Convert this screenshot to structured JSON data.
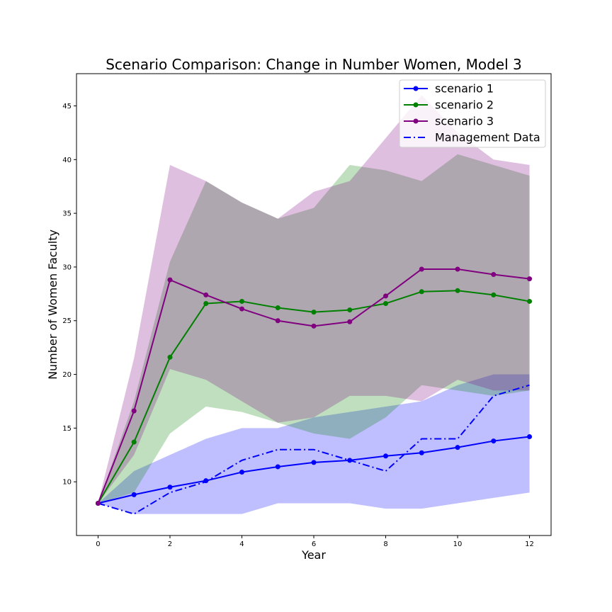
{
  "chart_data": {
    "type": "line",
    "title": "Scenario Comparison: Change in Number Women, Model 3",
    "xlabel": "Year",
    "ylabel": "Number of Women Faculty",
    "xlim": [
      -0.6,
      12.6
    ],
    "ylim": [
      5.0,
      48.0
    ],
    "xticks": [
      0,
      2,
      4,
      6,
      8,
      10,
      12
    ],
    "yticks": [
      10,
      15,
      20,
      25,
      30,
      35,
      40,
      45
    ],
    "x": [
      0,
      1,
      2,
      3,
      4,
      5,
      6,
      7,
      8,
      9,
      10,
      11,
      12
    ],
    "grid": false,
    "legend_position": "upper-right",
    "series": [
      {
        "name": "scenario 1",
        "color": "#0000ff",
        "style": "solid-marker",
        "values": [
          8.0,
          8.8,
          9.5,
          10.1,
          10.9,
          11.4,
          11.8,
          12.0,
          12.4,
          12.7,
          13.2,
          13.8,
          14.2
        ]
      },
      {
        "name": "scenario 2",
        "color": "#008000",
        "style": "solid-marker",
        "values": [
          8.0,
          13.7,
          21.6,
          26.6,
          26.8,
          26.2,
          25.8,
          26.0,
          26.6,
          27.7,
          27.8,
          27.4,
          26.8
        ]
      },
      {
        "name": "scenario 3",
        "color": "#800080",
        "style": "solid-marker",
        "values": [
          8.0,
          16.6,
          28.8,
          27.4,
          26.1,
          25.0,
          24.5,
          24.9,
          27.3,
          29.8,
          29.8,
          29.3,
          28.9
        ]
      },
      {
        "name": "Management Data",
        "color": "#0000ff",
        "style": "dashdot",
        "values": [
          8.0,
          7.0,
          9.0,
          10.0,
          12.0,
          13.0,
          13.0,
          12.0,
          11.0,
          14.0,
          14.0,
          18.0,
          19.0
        ]
      }
    ],
    "bands": [
      {
        "series": "scenario 1",
        "color": "#0000ff",
        "opacity": 0.25,
        "lower": [
          8.0,
          7.0,
          7.0,
          7.0,
          7.0,
          8.0,
          8.0,
          8.0,
          7.5,
          7.5,
          8.0,
          8.5,
          9.0
        ],
        "upper": [
          8.0,
          11.0,
          12.5,
          14.0,
          15.0,
          15.0,
          16.0,
          16.5,
          17.0,
          17.5,
          19.0,
          20.0,
          20.0
        ]
      },
      {
        "series": "scenario 2",
        "color": "#008000",
        "opacity": 0.25,
        "lower": [
          8.0,
          9.0,
          14.5,
          17.0,
          16.5,
          15.5,
          14.5,
          14.0,
          16.0,
          19.0,
          18.5,
          18.0,
          18.5
        ],
        "upper": [
          8.0,
          17.5,
          30.5,
          38.0,
          36.0,
          34.5,
          35.5,
          39.5,
          39.0,
          38.0,
          40.5,
          39.5,
          38.5
        ]
      },
      {
        "series": "scenario 3",
        "color": "#800080",
        "opacity": 0.25,
        "lower": [
          8.0,
          12.5,
          20.5,
          19.5,
          17.5,
          15.5,
          16.0,
          18.0,
          18.0,
          17.5,
          19.5,
          18.5,
          18.5
        ],
        "upper": [
          8.0,
          21.5,
          39.5,
          38.0,
          36.0,
          34.5,
          37.0,
          38.0,
          42.0,
          46.0,
          42.5,
          40.0,
          39.5
        ]
      }
    ]
  }
}
